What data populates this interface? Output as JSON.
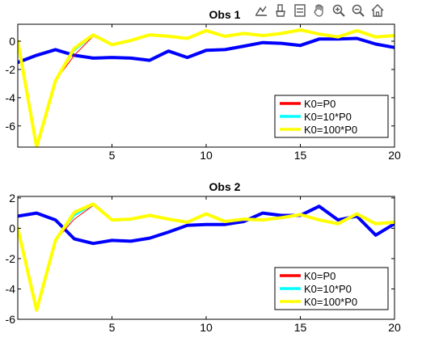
{
  "toolbar": {
    "icons": [
      "data-tips-icon",
      "brush-icon",
      "export-icon",
      "pan-icon",
      "zoom-in-icon",
      "zoom-out-icon",
      "home-icon"
    ]
  },
  "colors": {
    "red": "#ff0000",
    "cyan": "#00ffff",
    "yellow": "#ffff00",
    "blue": "#0000ff"
  },
  "chart_data": [
    {
      "type": "line",
      "title": "Obs 1",
      "xlim": [
        0,
        20
      ],
      "ylim": [
        -7.5,
        1.2
      ],
      "xticks": [
        5,
        10,
        15,
        20
      ],
      "yticks": [
        0,
        -2,
        -4,
        -6
      ],
      "legend": {
        "placement": "bottom-right",
        "entries": [
          "K0=P0",
          "K0=10*P0",
          "K0=100*P0"
        ]
      },
      "series": [
        {
          "color": "blue",
          "width": 4,
          "x": [
            0,
            1,
            2,
            3,
            4,
            5,
            6,
            7,
            8,
            9,
            10,
            11,
            12,
            13,
            14,
            15,
            16,
            17,
            18,
            19,
            20
          ],
          "y": [
            -1.5,
            -1.0,
            -0.6,
            -1.0,
            -1.2,
            -1.15,
            -1.2,
            -1.35,
            -0.7,
            -1.15,
            -0.65,
            -0.6,
            -0.35,
            -0.1,
            -0.15,
            -0.3,
            0.15,
            0.15,
            0.2,
            -0.2,
            -0.45
          ]
        },
        {
          "name": "K0=P0",
          "color": "red",
          "width": 1,
          "x": [
            0,
            1,
            2,
            3,
            4,
            5,
            6,
            7,
            8,
            9,
            10,
            11,
            12,
            13,
            14,
            15,
            16,
            17,
            18,
            19,
            20
          ],
          "y": [
            0.0,
            -7.5,
            -2.8,
            -1.0,
            0.35,
            -0.3,
            0.0,
            0.4,
            0.35,
            0.25,
            0.8,
            0.35,
            0.55,
            0.4,
            0.5,
            0.8,
            0.5,
            0.3,
            0.75,
            0.3,
            0.4
          ]
        },
        {
          "name": "K0=10*P0",
          "color": "cyan",
          "width": 2,
          "x": [
            0,
            1,
            2,
            3,
            4,
            5,
            6,
            7,
            8,
            9,
            10,
            11,
            12,
            13,
            14,
            15,
            16,
            17,
            18,
            19,
            20
          ],
          "y": [
            0.0,
            -7.5,
            -2.8,
            -0.65,
            0.4,
            -0.3,
            0.0,
            0.45,
            0.35,
            0.2,
            0.75,
            0.35,
            0.55,
            0.4,
            0.55,
            0.8,
            0.5,
            0.3,
            0.75,
            0.3,
            0.4
          ]
        },
        {
          "name": "K0=100*P0",
          "color": "yellow",
          "width": 4,
          "x": [
            0,
            1,
            2,
            3,
            4,
            5,
            6,
            7,
            8,
            9,
            10,
            11,
            12,
            13,
            14,
            15,
            16,
            17,
            18,
            19,
            20
          ],
          "y": [
            0.0,
            -7.5,
            -2.8,
            -0.5,
            0.45,
            -0.25,
            0.05,
            0.45,
            0.35,
            0.2,
            0.75,
            0.35,
            0.55,
            0.4,
            0.55,
            0.8,
            0.5,
            0.3,
            0.75,
            0.3,
            0.4
          ]
        }
      ]
    },
    {
      "type": "line",
      "title": "Obs 2",
      "xlim": [
        0,
        20
      ],
      "ylim": [
        -6,
        2.1
      ],
      "xticks": [
        5,
        10,
        15,
        20
      ],
      "yticks": [
        2,
        0,
        -2,
        -4,
        -6
      ],
      "legend": {
        "placement": "bottom-right",
        "entries": [
          "K0=P0",
          "K0=10*P0",
          "K0=100*P0"
        ]
      },
      "series": [
        {
          "color": "blue",
          "width": 4,
          "x": [
            0,
            1,
            2,
            3,
            4,
            5,
            6,
            7,
            8,
            9,
            10,
            11,
            12,
            13,
            14,
            15,
            16,
            17,
            18,
            19,
            20
          ],
          "y": [
            0.8,
            1.0,
            0.55,
            -0.7,
            -1.0,
            -0.8,
            -0.85,
            -0.65,
            -0.25,
            0.2,
            0.25,
            0.25,
            0.45,
            1.0,
            0.85,
            0.85,
            1.45,
            0.55,
            0.8,
            -0.45,
            0.3
          ]
        },
        {
          "name": "K0=P0",
          "color": "red",
          "width": 1,
          "x": [
            0,
            1,
            2,
            3,
            4,
            5,
            6,
            7,
            8,
            9,
            10,
            11,
            12,
            13,
            14,
            15,
            16,
            17,
            18,
            19,
            20
          ],
          "y": [
            0.0,
            -5.4,
            -0.8,
            0.6,
            1.5,
            0.5,
            0.55,
            0.85,
            0.6,
            0.4,
            0.95,
            0.45,
            0.6,
            0.55,
            0.7,
            0.9,
            0.55,
            0.3,
            0.95,
            0.3,
            0.4
          ]
        },
        {
          "name": "K0=10*P0",
          "color": "cyan",
          "width": 2,
          "x": [
            0,
            1,
            2,
            3,
            4,
            5,
            6,
            7,
            8,
            9,
            10,
            11,
            12,
            13,
            14,
            15,
            16,
            17,
            18,
            19,
            20
          ],
          "y": [
            0.0,
            -5.4,
            -0.8,
            0.85,
            1.55,
            0.5,
            0.55,
            0.85,
            0.6,
            0.4,
            0.95,
            0.45,
            0.6,
            0.55,
            0.7,
            0.9,
            0.55,
            0.3,
            0.95,
            0.3,
            0.4
          ]
        },
        {
          "name": "K0=100*P0",
          "color": "yellow",
          "width": 4,
          "x": [
            0,
            1,
            2,
            3,
            4,
            5,
            6,
            7,
            8,
            9,
            10,
            11,
            12,
            13,
            14,
            15,
            16,
            17,
            18,
            19,
            20
          ],
          "y": [
            0.0,
            -5.4,
            -0.8,
            1.05,
            1.6,
            0.55,
            0.6,
            0.85,
            0.6,
            0.4,
            0.95,
            0.45,
            0.6,
            0.55,
            0.7,
            0.9,
            0.55,
            0.3,
            0.95,
            0.3,
            0.4
          ]
        }
      ]
    }
  ]
}
